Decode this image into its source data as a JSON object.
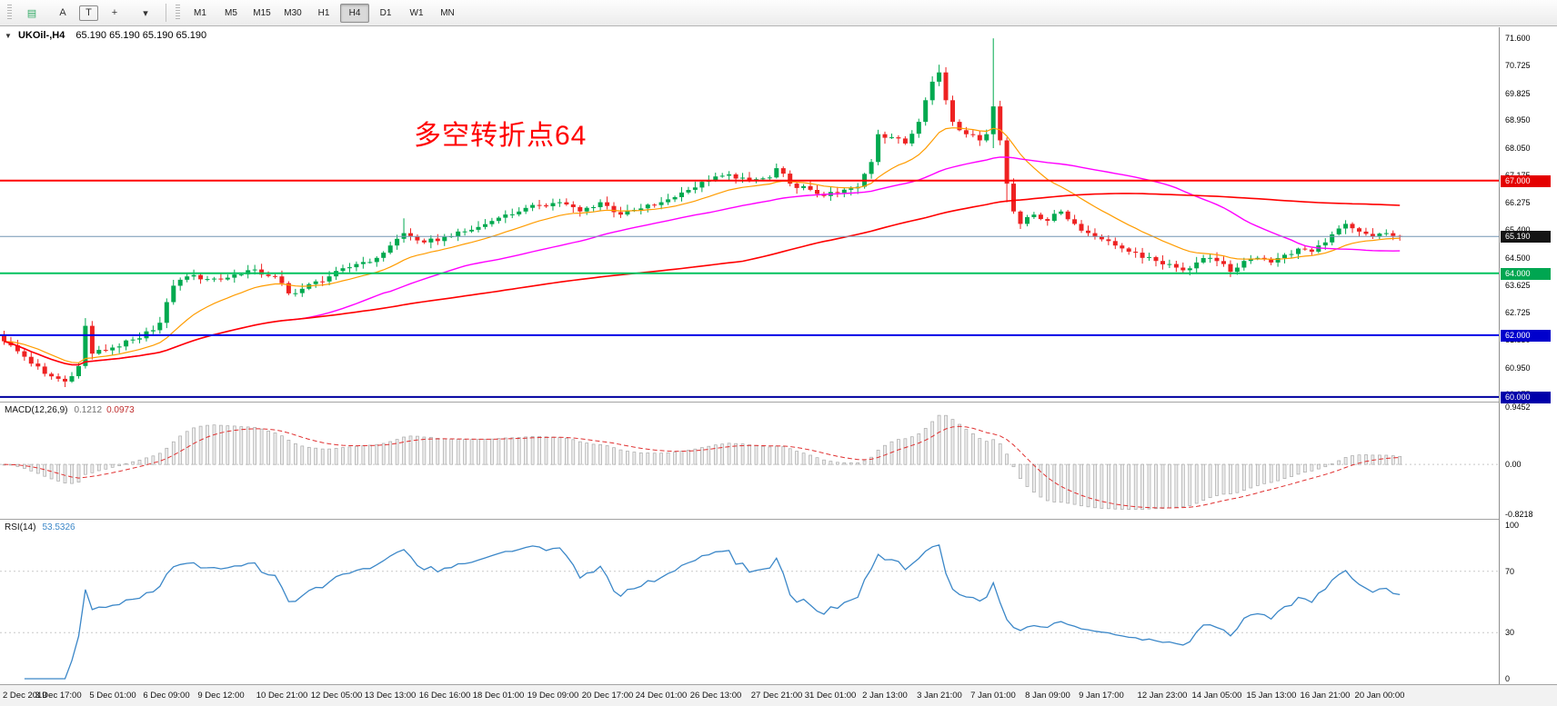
{
  "toolbar": {
    "icons": [
      {
        "name": "chart-type-icon",
        "glyph": "▤"
      },
      {
        "name": "text-label-icon",
        "glyph": "A"
      },
      {
        "name": "text-box-icon",
        "glyph": "T"
      },
      {
        "name": "crosshair-icon",
        "glyph": "+"
      },
      {
        "name": "dropdown-caret-icon",
        "glyph": "▾"
      }
    ],
    "timeframes": {
      "items": [
        "M1",
        "M5",
        "M15",
        "M30",
        "H1",
        "H4",
        "D1",
        "W1",
        "MN"
      ],
      "active": "H4"
    }
  },
  "chart": {
    "collapse_caret": "▼",
    "symbol_title": "UKOil-,H4",
    "ohlc": "65.190 65.190 65.190 65.190",
    "annotation": {
      "text": "多空转折点64",
      "color": "#ff0000"
    },
    "colors": {
      "up": "#00a94f",
      "down": "#ee2222",
      "price_line": "#7296b4"
    },
    "price_axis": {
      "min": 59.85,
      "max": 71.96,
      "ticks": [
        "71.600",
        "70.725",
        "69.825",
        "68.950",
        "68.050",
        "67.175",
        "66.275",
        "65.400",
        "64.500",
        "63.625",
        "62.725",
        "61.850",
        "60.950",
        "60.075"
      ],
      "badges": [
        {
          "label": "67.000",
          "color": "#e40000"
        },
        {
          "label": "65.190",
          "color": "#141414"
        },
        {
          "label": "64.000",
          "color": "#00a651"
        },
        {
          "label": "62.000",
          "color": "#0000cc"
        },
        {
          "label": "60.000",
          "color": "#0000aa"
        }
      ]
    },
    "hlines": [
      {
        "value": 67.0,
        "color": "#ff0000",
        "width": 2
      },
      {
        "value": 64.0,
        "color": "#00c25e",
        "width": 2
      },
      {
        "value": 62.0,
        "color": "#0000e6",
        "width": 2
      },
      {
        "value": 60.0,
        "color": "#0000a0",
        "width": 2
      },
      {
        "value": 65.19,
        "color": "#7296b4",
        "width": 1
      }
    ],
    "candles": {
      "count": 207,
      "waypoints": [
        [
          0,
          61.8
        ],
        [
          3,
          61.3
        ],
        [
          6,
          60.75
        ],
        [
          9,
          60.5
        ],
        [
          11,
          61.0
        ],
        [
          12,
          62.3
        ],
        [
          13,
          61.4
        ],
        [
          16,
          61.6
        ],
        [
          20,
          61.9
        ],
        [
          23,
          62.4
        ],
        [
          25,
          63.6
        ],
        [
          27,
          63.9
        ],
        [
          32,
          63.8
        ],
        [
          36,
          64.1
        ],
        [
          40,
          63.9
        ],
        [
          42,
          63.35
        ],
        [
          44,
          63.5
        ],
        [
          48,
          63.9
        ],
        [
          52,
          64.3
        ],
        [
          55,
          64.5
        ],
        [
          57,
          64.9
        ],
        [
          59,
          65.3
        ],
        [
          62,
          65.0
        ],
        [
          66,
          65.2
        ],
        [
          70,
          65.5
        ],
        [
          73,
          65.8
        ],
        [
          76,
          66.0
        ],
        [
          79,
          66.2
        ],
        [
          82,
          66.3
        ],
        [
          85,
          66.0
        ],
        [
          88,
          66.3
        ],
        [
          91,
          65.9
        ],
        [
          94,
          66.1
        ],
        [
          97,
          66.3
        ],
        [
          101,
          66.7
        ],
        [
          104,
          67.0
        ],
        [
          107,
          67.2
        ],
        [
          110,
          67.0
        ],
        [
          113,
          67.1
        ],
        [
          114,
          67.4
        ],
        [
          116,
          66.9
        ],
        [
          119,
          66.7
        ],
        [
          121,
          66.5
        ],
        [
          123,
          66.6
        ],
        [
          126,
          66.8
        ],
        [
          128,
          67.6
        ],
        [
          129,
          68.5
        ],
        [
          131,
          68.4
        ],
        [
          133,
          68.2
        ],
        [
          135,
          68.9
        ],
        [
          136,
          69.6
        ],
        [
          137,
          70.2
        ],
        [
          138,
          70.5
        ],
        [
          139,
          69.6
        ],
        [
          140,
          68.9
        ],
        [
          142,
          68.5
        ],
        [
          144,
          68.3
        ],
        [
          145,
          68.5
        ],
        [
          146,
          69.4
        ],
        [
          147,
          68.3
        ],
        [
          148,
          66.9
        ],
        [
          149,
          66.0
        ],
        [
          150,
          65.6
        ],
        [
          152,
          65.9
        ],
        [
          154,
          65.7
        ],
        [
          156,
          66.0
        ],
        [
          158,
          65.6
        ],
        [
          160,
          65.3
        ],
        [
          162,
          65.1
        ],
        [
          164,
          64.9
        ],
        [
          166,
          64.7
        ],
        [
          168,
          64.5
        ],
        [
          170,
          64.4
        ],
        [
          172,
          64.3
        ],
        [
          174,
          64.1
        ],
        [
          176,
          64.35
        ],
        [
          178,
          64.5
        ],
        [
          180,
          64.3
        ],
        [
          181,
          64.05
        ],
        [
          183,
          64.4
        ],
        [
          185,
          64.5
        ],
        [
          187,
          64.35
        ],
        [
          189,
          64.6
        ],
        [
          191,
          64.8
        ],
        [
          193,
          64.7
        ],
        [
          195,
          65.0
        ],
        [
          197,
          65.45
        ],
        [
          198,
          65.6
        ],
        [
          200,
          65.35
        ],
        [
          202,
          65.2
        ],
        [
          204,
          65.3
        ],
        [
          206,
          65.19
        ]
      ],
      "wick_overrides": [
        {
          "i": 9,
          "low": 60.32
        },
        {
          "i": 12,
          "high": 62.55,
          "low": 60.95
        },
        {
          "i": 59,
          "high": 65.78
        },
        {
          "i": 114,
          "high": 67.55
        },
        {
          "i": 138,
          "high": 70.75
        },
        {
          "i": 146,
          "high": 71.6,
          "low": 68.05
        },
        {
          "i": 148,
          "low": 66.3
        },
        {
          "i": 181,
          "low": 63.95
        },
        {
          "i": 198,
          "high": 65.72
        }
      ]
    },
    "ma_lines": [
      {
        "name": "ma-fast",
        "type": "ema",
        "period": 16,
        "color": "#ff9c00",
        "width": 1.2
      },
      {
        "name": "ma-mid",
        "type": "sma",
        "period": 45,
        "color": "#ff00ff",
        "width": 1.4
      },
      {
        "name": "ma-slow",
        "type": "sma",
        "period": 110,
        "color": "#ff0000",
        "width": 1.6
      }
    ]
  },
  "macd_panel": {
    "label": "MACD(12,26,9)",
    "value_main": "0.1212",
    "value_signal": "0.0973",
    "fast": 12,
    "slow": 26,
    "signal": 9,
    "axis_ticks": [
      "0.9452",
      "0.00",
      "-0.8218"
    ],
    "histogram_fill": "#ededed",
    "histogram_stroke": "#a9a9a9",
    "signal_color": "#e03030"
  },
  "rsi_panel": {
    "label": "RSI(14)",
    "value": "53.5326",
    "period": 14,
    "axis_ticks": [
      "100",
      "70",
      "30",
      "0"
    ],
    "levels": [
      70,
      30
    ],
    "line_color": "#3b87c8"
  },
  "time_axis": {
    "labels": [
      {
        "text": "2 Dec 2019",
        "i": 0
      },
      {
        "text": "3 Dec 17:00",
        "i": 8
      },
      {
        "text": "5 Dec 01:00",
        "i": 16
      },
      {
        "text": "6 Dec 09:00",
        "i": 24
      },
      {
        "text": "9 Dec 12:00",
        "i": 32
      },
      {
        "text": "10 Dec 21:00",
        "i": 41
      },
      {
        "text": "12 Dec 05:00",
        "i": 49
      },
      {
        "text": "13 Dec 13:00",
        "i": 57
      },
      {
        "text": "16 Dec 16:00",
        "i": 65
      },
      {
        "text": "18 Dec 01:00",
        "i": 73
      },
      {
        "text": "19 Dec 09:00",
        "i": 81
      },
      {
        "text": "20 Dec 17:00",
        "i": 89
      },
      {
        "text": "24 Dec 01:00",
        "i": 97
      },
      {
        "text": "26 Dec 13:00",
        "i": 105
      },
      {
        "text": "27 Dec 21:00",
        "i": 114
      },
      {
        "text": "31 Dec 01:00",
        "i": 122
      },
      {
        "text": "2 Jan 13:00",
        "i": 130
      },
      {
        "text": "3 Jan 21:00",
        "i": 138
      },
      {
        "text": "7 Jan 01:00",
        "i": 146
      },
      {
        "text": "8 Jan 09:00",
        "i": 154
      },
      {
        "text": "9 Jan 17:00",
        "i": 162
      },
      {
        "text": "12 Jan 23:00",
        "i": 171
      },
      {
        "text": "14 Jan 05:00",
        "i": 179
      },
      {
        "text": "15 Jan 13:00",
        "i": 187
      },
      {
        "text": "16 Jan 21:00",
        "i": 195
      },
      {
        "text": "20 Jan 00:00",
        "i": 203
      }
    ]
  }
}
